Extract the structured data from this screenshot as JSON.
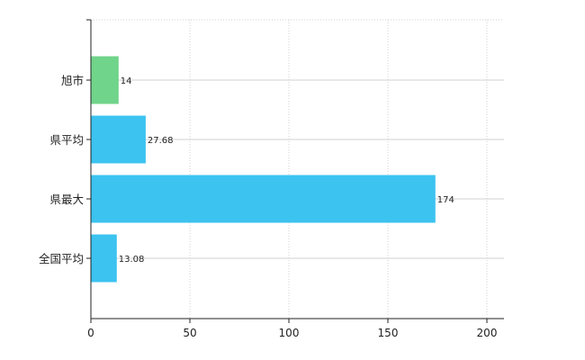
{
  "chart_data": {
    "type": "bar",
    "orientation": "horizontal",
    "categories": [
      "旭市",
      "県平均",
      "県最大",
      "全国平均"
    ],
    "values": [
      14,
      27.68,
      174,
      13.08
    ],
    "value_labels": [
      "14",
      "27.68",
      "174",
      "13.08"
    ],
    "bar_colors": [
      "#70d48a",
      "#3cc3f0",
      "#3cc3f0",
      "#3cc3f0"
    ],
    "xlim": [
      0,
      200
    ],
    "xticks": [
      0,
      50,
      100,
      150,
      200
    ],
    "xtick_labels": [
      "0",
      "50",
      "100",
      "150",
      "200"
    ],
    "title": "",
    "xlabel": "",
    "ylabel": "",
    "grid": true,
    "grid_style": "dotted",
    "legend": "none"
  }
}
